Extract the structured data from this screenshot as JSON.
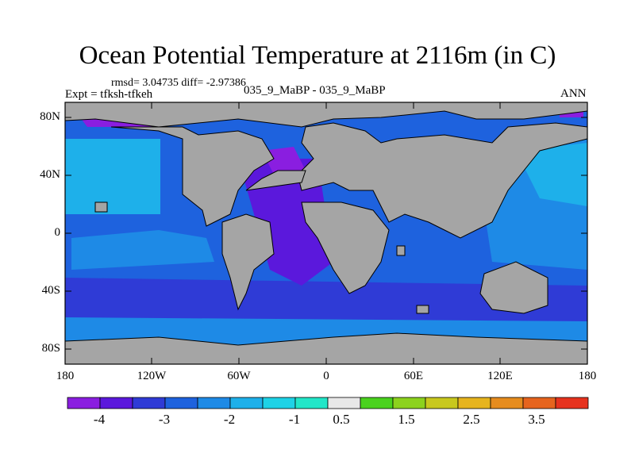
{
  "figure": {
    "title": "Ocean Potential Temperature at 2116m (in C)",
    "stats": "rmsd= 3.04735 diff= -2.97386",
    "expt": "Expt = tfksh-tfkeh",
    "case": "035_9_MaBP - 035_9_MaBP",
    "period": "ANN"
  },
  "axes": {
    "lat_ticks": [
      "80N",
      "40N",
      "0",
      "40S",
      "80S"
    ],
    "lon_ticks": [
      "180",
      "120W",
      "60W",
      "0",
      "60E",
      "120E",
      "180"
    ]
  },
  "colorbar": {
    "colors": [
      "#8a1ee0",
      "#5b18dc",
      "#2f3bd6",
      "#1e62de",
      "#1e8ae6",
      "#1eb0ea",
      "#1ed2e6",
      "#22e6c8",
      "#e8e8e8",
      "#4ad21e",
      "#8cd21e",
      "#c8c81e",
      "#e6b41e",
      "#e68c1e",
      "#e6641e",
      "#e6321e"
    ],
    "labels": [
      "-4",
      "-3",
      "-2",
      "-1",
      "0.5",
      "1.5",
      "2.5",
      "3.5"
    ]
  },
  "colors": {
    "land": "#a5a5a5",
    "frame": "#000000"
  }
}
